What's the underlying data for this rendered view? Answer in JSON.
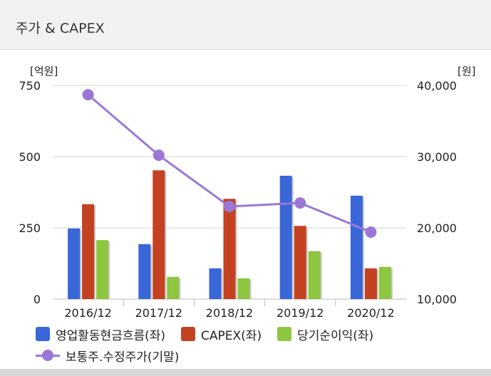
{
  "header": {
    "title": "주가 & CAPEX"
  },
  "chart_data": {
    "type": "bar",
    "categories": [
      "2016/12",
      "2017/12",
      "2018/12",
      "2019/12",
      "2020/12"
    ],
    "series": [
      {
        "name": "영업활동현금흐름(좌)",
        "axis": "left",
        "kind": "bar",
        "color": "#3a67d8",
        "values": [
          248,
          193,
          108,
          433,
          363
        ]
      },
      {
        "name": "CAPEX(좌)",
        "axis": "left",
        "kind": "bar",
        "color": "#c44222",
        "values": [
          333,
          452,
          352,
          257,
          108
        ]
      },
      {
        "name": "당기순이익(좌)",
        "axis": "left",
        "kind": "bar",
        "color": "#8dc63f",
        "values": [
          207,
          78,
          73,
          168,
          113
        ]
      },
      {
        "name": "보통주.수정주가(기말)",
        "axis": "right",
        "kind": "line",
        "color": "#9a77d6",
        "values": [
          38700,
          30200,
          23000,
          23500,
          19400
        ]
      }
    ],
    "left_axis": {
      "unit": "[억원]",
      "range": [
        0,
        750
      ],
      "ticks": [
        "0",
        "250",
        "500",
        "750"
      ]
    },
    "right_axis": {
      "unit": "[원]",
      "range": [
        10000,
        40000
      ],
      "ticks": [
        "10,000",
        "20,000",
        "30,000",
        "40,000"
      ]
    },
    "grid": "horizontal",
    "legend_position": "bottom"
  }
}
